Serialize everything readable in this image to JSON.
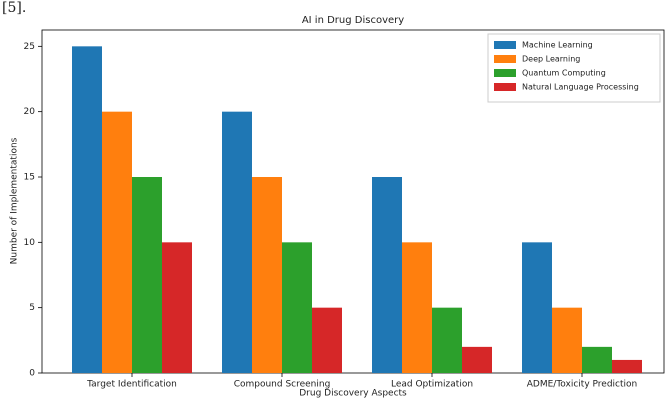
{
  "reference_note": "[5].",
  "chart_data": {
    "type": "bar",
    "title": "AI in Drug Discovery",
    "x_label": "Drug Discovery Aspects",
    "y_label": "Number of Implementations",
    "categories": [
      "Target Identification",
      "Compound Screening",
      "Lead Optimization",
      "ADME/Toxicity Prediction"
    ],
    "series": [
      {
        "name": "Machine Learning",
        "color": "#1f77b4",
        "values": [
          25,
          20,
          15,
          10
        ]
      },
      {
        "name": "Deep Learning",
        "color": "#ff7f0e",
        "values": [
          20,
          15,
          10,
          5
        ]
      },
      {
        "name": "Quantum Computing",
        "color": "#2ca02c",
        "values": [
          15,
          10,
          5,
          2
        ]
      },
      {
        "name": "Natural Language Processing",
        "color": "#d62728",
        "values": [
          10,
          5,
          2,
          1
        ]
      }
    ],
    "ylim": [
      0,
      26.25
    ],
    "yticks": [
      0,
      5,
      10,
      15,
      20,
      25
    ],
    "legend": "upper right",
    "grid": false
  }
}
